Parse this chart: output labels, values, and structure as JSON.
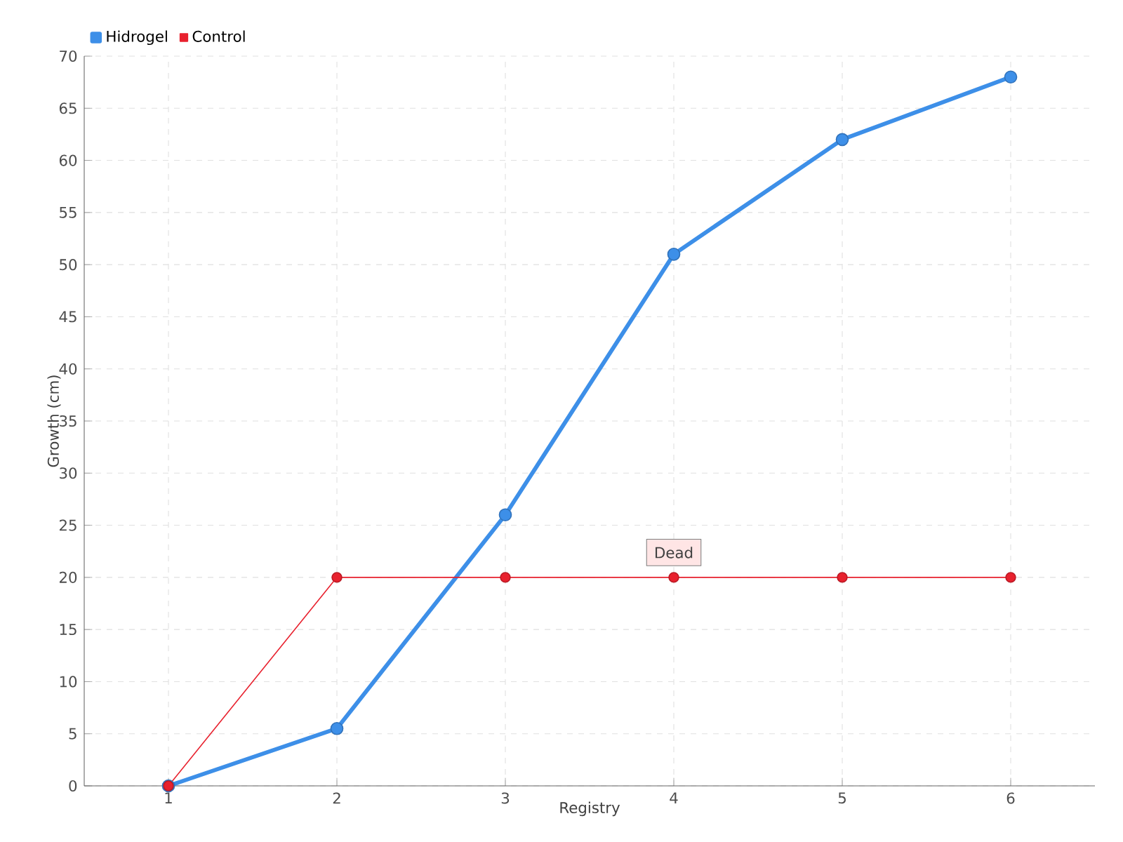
{
  "chart_data": {
    "type": "line",
    "xlabel": "Registry",
    "ylabel": "Growth (cm)",
    "categories": [
      "1",
      "2",
      "3",
      "4",
      "5",
      "6"
    ],
    "series": [
      {
        "name": "Hidrogel",
        "color": "#3d8fe8",
        "values": [
          0,
          5.5,
          26,
          51,
          62,
          68
        ]
      },
      {
        "name": "Control",
        "color": "#e8212e",
        "values": [
          0,
          20,
          20,
          20,
          20,
          20
        ]
      }
    ],
    "ylim": [
      0,
      70
    ],
    "yticks": [
      0,
      5,
      10,
      15,
      20,
      25,
      30,
      35,
      40,
      45,
      50,
      55,
      60,
      65,
      70
    ],
    "annotations": [
      {
        "text": "Dead",
        "x": "4",
        "y": 20
      }
    ],
    "grid": true,
    "legend": "top left",
    "marker": "circle",
    "line_style": "solid"
  }
}
